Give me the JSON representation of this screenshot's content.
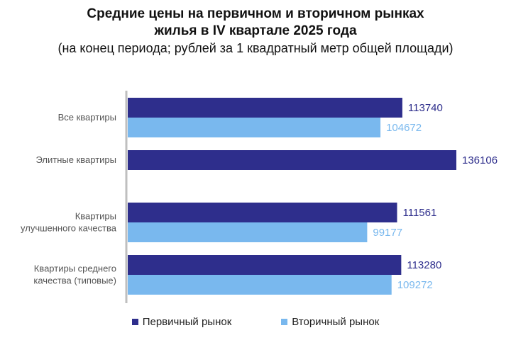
{
  "chart_data": {
    "type": "bar",
    "orientation": "horizontal",
    "title_line1": "Средние цены на первичном и вторичном рынках",
    "title_line2": "жилья в IV квартале 2025 года",
    "subtitle": "(на конец периода; рублей за 1 квадратный метр общей площади)",
    "categories": [
      [
        "Все квартиры"
      ],
      [
        "Элитные квартиры"
      ],
      [
        "Квартиры",
        "улучшенного качества"
      ],
      [
        "Квартиры среднего",
        "качества (типовые)"
      ]
    ],
    "series": [
      {
        "name": "Первичный рынок",
        "color": "#2e2e8c",
        "values": [
          113740,
          136106,
          111561,
          113280
        ]
      },
      {
        "name": "Вторичный рынок",
        "color": "#79b8ee",
        "values": [
          104672,
          null,
          99177,
          109272
        ]
      }
    ],
    "xlim": [
      0,
      136106
    ],
    "legend_position": "bottom"
  }
}
